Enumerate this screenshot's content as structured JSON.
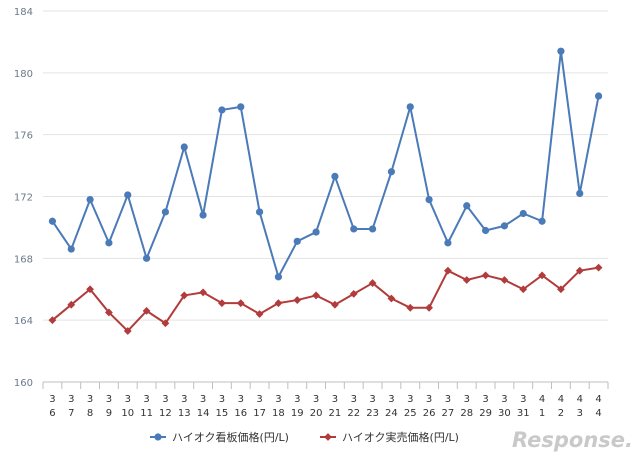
{
  "chart_data": {
    "type": "line",
    "categories": [
      [
        "3",
        "6"
      ],
      [
        "3",
        "7"
      ],
      [
        "3",
        "8"
      ],
      [
        "3",
        "9"
      ],
      [
        "3",
        "10"
      ],
      [
        "3",
        "11"
      ],
      [
        "3",
        "12"
      ],
      [
        "3",
        "13"
      ],
      [
        "3",
        "14"
      ],
      [
        "3",
        "15"
      ],
      [
        "3",
        "16"
      ],
      [
        "3",
        "17"
      ],
      [
        "3",
        "18"
      ],
      [
        "3",
        "19"
      ],
      [
        "3",
        "20"
      ],
      [
        "3",
        "21"
      ],
      [
        "3",
        "22"
      ],
      [
        "3",
        "23"
      ],
      [
        "3",
        "24"
      ],
      [
        "3",
        "25"
      ],
      [
        "3",
        "26"
      ],
      [
        "3",
        "27"
      ],
      [
        "3",
        "28"
      ],
      [
        "3",
        "29"
      ],
      [
        "3",
        "30"
      ],
      [
        "3",
        "31"
      ],
      [
        "4",
        "1"
      ],
      [
        "4",
        "2"
      ],
      [
        "4",
        "3"
      ],
      [
        "4",
        "4"
      ]
    ],
    "series": [
      {
        "name": "ハイオク看板価格(円/L)",
        "color": "#4a7ab8",
        "marker": "circle",
        "values": [
          170.4,
          168.6,
          171.8,
          169.0,
          172.1,
          168.0,
          171.0,
          175.2,
          170.8,
          177.6,
          177.8,
          171.0,
          166.8,
          169.1,
          169.7,
          173.3,
          169.9,
          169.9,
          173.6,
          177.8,
          171.8,
          169.0,
          171.4,
          169.8,
          170.1,
          170.9,
          170.4,
          181.4,
          172.2,
          178.5
        ]
      },
      {
        "name": "ハイオク実売価格(円/L)",
        "color": "#b23b3b",
        "marker": "diamond",
        "values": [
          164.0,
          165.0,
          166.0,
          164.5,
          163.3,
          164.6,
          163.8,
          165.6,
          165.8,
          165.1,
          165.1,
          164.4,
          165.1,
          165.3,
          165.6,
          165.0,
          165.7,
          166.4,
          165.4,
          164.8,
          164.8,
          167.2,
          166.6,
          166.9,
          166.6,
          166.0,
          166.9,
          166.0,
          167.2,
          167.4
        ]
      }
    ],
    "ylim": [
      160,
      184
    ],
    "yticks": [
      160,
      164,
      168,
      172,
      176,
      180,
      184
    ],
    "grid": true,
    "legend_position": "bottom",
    "title": "",
    "xlabel": "",
    "ylabel": ""
  },
  "watermark": "Response."
}
